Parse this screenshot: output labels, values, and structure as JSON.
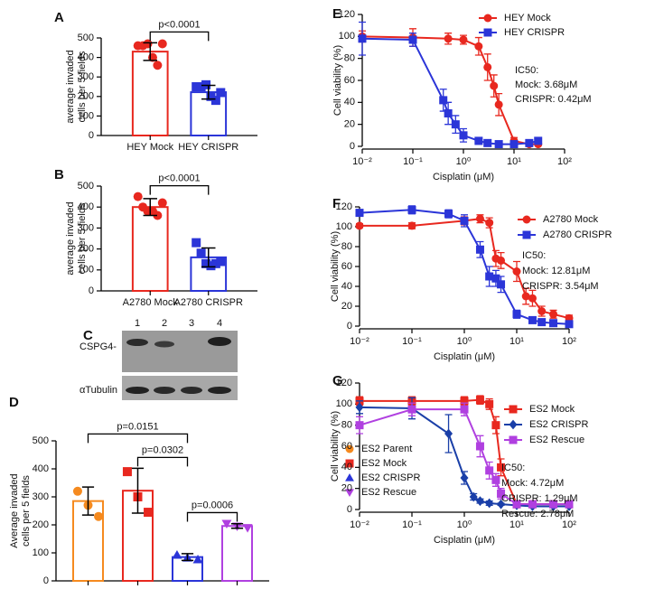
{
  "chart_data": [
    {
      "type": "bar",
      "panel": "A",
      "ylabel": [
        "average invaded",
        "cells per 5 fields"
      ],
      "categories": [
        "HEY Mock",
        "HEY CRISPR"
      ],
      "colors": [
        "#e8281f",
        "#2b35d8"
      ],
      "markers": [
        "circle",
        "square"
      ],
      "values": [
        430,
        222
      ],
      "errors": [
        45,
        35
      ],
      "points": [
        [
          460,
          460,
          470,
          400,
          360,
          470
        ],
        [
          250,
          250,
          260,
          200,
          180,
          220
        ]
      ],
      "ylim": [
        0,
        500
      ],
      "yticks": [
        0,
        100,
        200,
        300,
        400,
        500
      ],
      "annotations": [
        {
          "text": "p<0.0001",
          "between": [
            "HEY Mock",
            "HEY CRISPR"
          ]
        }
      ]
    },
    {
      "type": "bar",
      "panel": "B",
      "ylabel": [
        "average invaded",
        "cells per 5 fields"
      ],
      "categories": [
        "A2780 Mock",
        "A2780 CRISPR"
      ],
      "colors": [
        "#e8281f",
        "#2b35d8"
      ],
      "markers": [
        "circle",
        "square"
      ],
      "values": [
        400,
        160
      ],
      "errors": [
        40,
        45
      ],
      "points": [
        [
          450,
          400,
          380,
          380,
          360,
          420
        ],
        [
          230,
          180,
          130,
          120,
          130,
          140
        ]
      ],
      "ylim": [
        0,
        500
      ],
      "yticks": [
        0,
        100,
        200,
        300,
        400,
        500
      ],
      "annotations": [
        {
          "text": "p<0.0001",
          "between": [
            "A2780 Mock",
            "A2780 CRISPR"
          ]
        }
      ]
    },
    {
      "type": "bar",
      "panel": "D",
      "ylabel": [
        "Average invaded",
        "cells per 5 fields"
      ],
      "categories": [
        "ES2 Parent",
        "ES2 Mock",
        "ES2 CRISPR",
        "ES2 Rescue"
      ],
      "colors": [
        "#f58a1f",
        "#e8281f",
        "#2b35d8",
        "#b040e0"
      ],
      "markers": [
        "circle",
        "square",
        "triangle",
        "triangle-down"
      ],
      "values": [
        285,
        322,
        85,
        196
      ],
      "errors": [
        50,
        80,
        12,
        8
      ],
      "points": [
        [
          320,
          270,
          230
        ],
        [
          390,
          300,
          245
        ],
        [
          92,
          82,
          76
        ],
        [
          205,
          195,
          190
        ]
      ],
      "ylim": [
        0,
        500
      ],
      "yticks": [
        0,
        100,
        200,
        300,
        400,
        500
      ],
      "legend": "upper right",
      "annotations": [
        {
          "text": "p=0.0151",
          "between": [
            "ES2 Parent",
            "ES2 CRISPR"
          ]
        },
        {
          "text": "p=0.0302",
          "between": [
            "ES2 Mock",
            "ES2 CRISPR"
          ]
        },
        {
          "text": "p=0.0006",
          "between": [
            "ES2 CRISPR",
            "ES2 Rescue"
          ]
        }
      ]
    },
    {
      "type": "line",
      "panel": "E",
      "xlabel": "Cisplatin (μM)",
      "ylabel": "Cell viability (%)",
      "xscale": "log",
      "xlim": [
        0.01,
        100
      ],
      "xticks": [
        {
          "value": 0.01,
          "label": "10⁻²"
        },
        {
          "value": 0.1,
          "label": "10⁻¹"
        },
        {
          "value": 1,
          "label": "10⁰"
        },
        {
          "value": 10,
          "label": "10¹"
        },
        {
          "value": 100,
          "label": "10²"
        }
      ],
      "ylim": [
        0,
        120
      ],
      "yticks": [
        0,
        20,
        40,
        60,
        80,
        100,
        120
      ],
      "legend": "upper right",
      "series": [
        {
          "name": "HEY Mock",
          "color": "#e8281f",
          "marker": "circle",
          "x": [
            0.01,
            0.1,
            0.5,
            1,
            2,
            3,
            4,
            5,
            10,
            20,
            30
          ],
          "values": [
            100,
            99,
            98,
            97,
            91,
            72,
            55,
            38,
            5,
            2,
            2
          ],
          "errors": [
            5,
            8,
            5,
            4,
            8,
            12,
            10,
            10,
            3,
            2,
            1
          ]
        },
        {
          "name": "HEY CRISPR",
          "color": "#2b35d8",
          "marker": "square",
          "x": [
            0.01,
            0.1,
            0.4,
            0.5,
            0.7,
            1,
            2,
            3,
            5,
            10,
            20,
            30
          ],
          "values": [
            98,
            97,
            42,
            30,
            20,
            10,
            5,
            3,
            2,
            2,
            3,
            5
          ],
          "errors": [
            15,
            6,
            10,
            10,
            8,
            6,
            3,
            2,
            1,
            1,
            1,
            2
          ]
        }
      ],
      "annotations": [
        "IC50:",
        "Mock: 3.68μM",
        "CRISPR: 0.42μM"
      ]
    },
    {
      "type": "line",
      "panel": "F",
      "xlabel": "Cisplatin (μM)",
      "ylabel": "Cell viability (%)",
      "xscale": "log",
      "xlim": [
        0.01,
        100
      ],
      "xticks": [
        {
          "value": 0.01,
          "label": "10⁻²"
        },
        {
          "value": 0.1,
          "label": "10⁻¹"
        },
        {
          "value": 1,
          "label": "10⁰"
        },
        {
          "value": 10,
          "label": "10¹"
        },
        {
          "value": 100,
          "label": "10²"
        }
      ],
      "ylim": [
        0,
        120
      ],
      "yticks": [
        0,
        20,
        40,
        60,
        80,
        100,
        120
      ],
      "legend": "upper right",
      "series": [
        {
          "name": "A2780 Mock",
          "color": "#e8281f",
          "marker": "circle",
          "x": [
            0.01,
            0.1,
            1,
            2,
            3,
            4,
            5,
            10,
            15,
            20,
            30,
            50,
            100
          ],
          "values": [
            101,
            101,
            106,
            108,
            104,
            68,
            66,
            55,
            30,
            28,
            15,
            12,
            8
          ],
          "errors": [
            2,
            3,
            4,
            4,
            5,
            8,
            8,
            10,
            8,
            8,
            5,
            4,
            3
          ]
        },
        {
          "name": "A2780 CRISPR",
          "color": "#2b35d8",
          "marker": "square",
          "x": [
            0.01,
            0.1,
            0.5,
            1,
            2,
            3,
            4,
            5,
            10,
            20,
            30,
            50,
            100
          ],
          "values": [
            114,
            117,
            113,
            106,
            77,
            50,
            48,
            42,
            12,
            6,
            4,
            3,
            2
          ],
          "errors": [
            3,
            4,
            4,
            6,
            8,
            10,
            8,
            8,
            4,
            3,
            2,
            1,
            1
          ]
        }
      ],
      "annotations": [
        "IC50:",
        "Mock: 12.81μM",
        "CRISPR: 3.54μM"
      ]
    },
    {
      "type": "line",
      "panel": "G",
      "xlabel": "Cisplatin (μM)",
      "ylabel": "Cell viability (%)",
      "xscale": "log",
      "xlim": [
        0.01,
        100
      ],
      "xticks": [
        {
          "value": 0.01,
          "label": "10⁻²"
        },
        {
          "value": 0.1,
          "label": "10⁻¹"
        },
        {
          "value": 1,
          "label": "10⁰"
        },
        {
          "value": 10,
          "label": "10¹"
        },
        {
          "value": 100,
          "label": "10²"
        }
      ],
      "ylim": [
        0,
        120
      ],
      "yticks": [
        0,
        20,
        40,
        60,
        80,
        100,
        120
      ],
      "legend": "upper right",
      "series": [
        {
          "name": "ES2 Mock",
          "color": "#e8281f",
          "marker": "square",
          "x": [
            0.01,
            0.1,
            1,
            2,
            3,
            4,
            5,
            10,
            20,
            50,
            100
          ],
          "values": [
            103,
            103,
            103,
            104,
            100,
            80,
            40,
            5,
            5,
            5,
            5
          ],
          "errors": [
            4,
            4,
            4,
            4,
            5,
            8,
            8,
            3,
            2,
            2,
            2
          ]
        },
        {
          "name": "ES2 CRISPR",
          "color": "#1a3fa8",
          "marker": "diamond",
          "x": [
            0.01,
            0.1,
            0.5,
            1,
            1.5,
            2,
            3,
            5,
            10,
            20,
            50,
            100
          ],
          "values": [
            97,
            96,
            72,
            30,
            12,
            8,
            6,
            5,
            4,
            3,
            3,
            3
          ],
          "errors": [
            6,
            10,
            18,
            6,
            3,
            2,
            2,
            1,
            1,
            1,
            1,
            1
          ]
        },
        {
          "name": "ES2 Rescue",
          "color": "#b040e0",
          "marker": "square",
          "x": [
            0.01,
            0.1,
            1,
            2,
            3,
            4,
            5,
            10,
            20,
            50,
            100
          ],
          "values": [
            80,
            95,
            95,
            60,
            37,
            28,
            15,
            5,
            5,
            5,
            5
          ],
          "errors": [
            8,
            6,
            6,
            10,
            8,
            6,
            5,
            2,
            2,
            2,
            2
          ]
        }
      ],
      "annotations": [
        "IC50:",
        "Mock: 4.72μM",
        "CRISPR: 1.29μM",
        "Rescue: 2.78μM"
      ]
    }
  ],
  "blot": {
    "panel": "C",
    "lanes": [
      "1",
      "2",
      "3",
      "4"
    ],
    "rows": [
      "CSPG4-",
      "αTubulin"
    ]
  }
}
